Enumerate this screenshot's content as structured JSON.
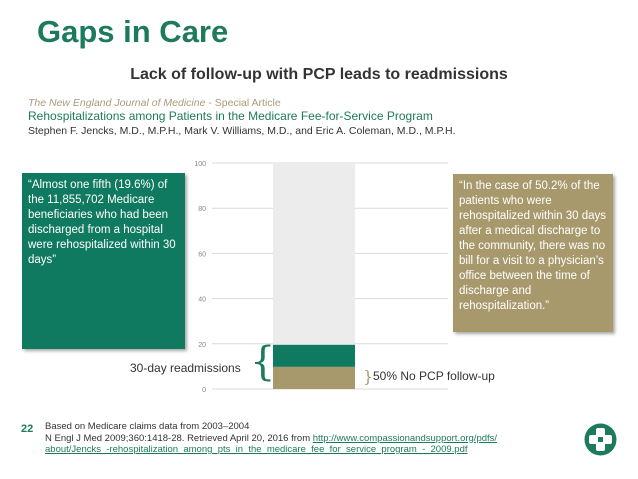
{
  "header": {
    "title": "Gaps in Care",
    "subtitle": "Lack of follow-up with PCP leads to readmissions"
  },
  "citation": {
    "journal": "The New England Journal of Medicine",
    "journal_suffix": " - Special Article",
    "article_title": "Rehospitalizations among Patients in the Medicare Fee-for-Service Program",
    "authors": "Stephen F. Jencks, M.D., M.P.H., Mark V. Williams, M.D., and Eric A. Coleman, M.D., M.P.H."
  },
  "callouts": {
    "left": "“Almost one fifth (19.6%) of the 11,855,702 Medicare beneficiaries who had been discharged from a hospital were rehospitalized within 30 days”",
    "right": "“In the case of 50.2% of the patients who were rehospitalized within 30 days after a medical discharge to the community, there was no bill for a visit to a physician’s office between the time of discharge and rehospitalization.”"
  },
  "labels": {
    "readmissions": "30-day readmissions",
    "no_pcp": "50% No PCP follow-up",
    "left_brace": "{",
    "right_brace": "}"
  },
  "footer": {
    "page_number": "22",
    "source_line1": "Based on Medicare claims data from 2003–2004",
    "source_line2_prefix": "N Engl J Med 2009;360:1418-28. Retrieved April 20, 2016 from ",
    "source_link_part1": "http://www.compassionandsupport.org/pdfs/",
    "source_link_part2": "about/Jencks_-rehospitalization_among_pts_in_the_medicare_fee_for_service_program_-_2009.pdf"
  },
  "colors": {
    "brand_green": "#1d7a5c",
    "callout_green": "#0f7a5f",
    "tan": "#a8996c",
    "bar_background": "#ececec"
  },
  "icons": {
    "logo": "green-cross-logo-icon"
  },
  "chart_data": {
    "type": "bar",
    "stacked": true,
    "categories": [
      ""
    ],
    "series": [
      {
        "name": "",
        "values": [
          9.8
        ],
        "color": "#a8996c"
      },
      {
        "name": "",
        "values": [
          9.8
        ],
        "color": "#0f7a5f"
      },
      {
        "name": "",
        "values": [
          80.4
        ],
        "color": "#ececec"
      }
    ],
    "ylim": [
      0,
      100
    ],
    "yticks": [
      "0",
      "20",
      "40",
      "60",
      "80",
      "100"
    ],
    "ytick_values": [
      0,
      20,
      40,
      60,
      80,
      100
    ],
    "grid": true,
    "xlabel": "",
    "ylabel": ""
  }
}
